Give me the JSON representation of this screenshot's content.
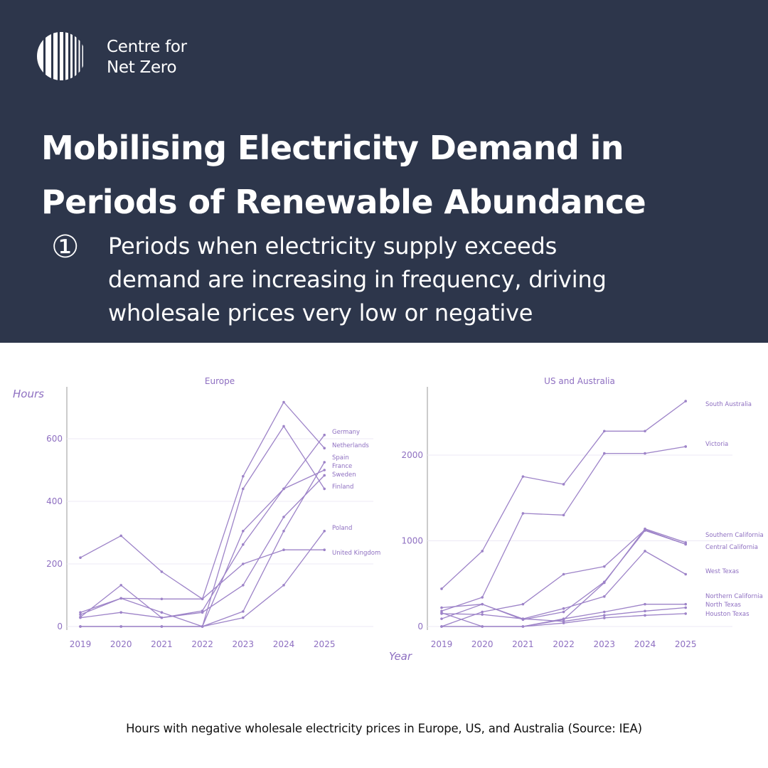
{
  "brand": {
    "line1": "Centre for",
    "line2": "Net Zero",
    "logo_icon": "barcode-circle-logo"
  },
  "headline": {
    "line1": "Mobilising Electricity Demand in",
    "line2": "Periods of Renewable Abundance"
  },
  "point": {
    "number": "①",
    "line1": "Periods when electricity supply exceeds",
    "line2": "demand are increasing in frequency, driving",
    "line3": "wholesale prices very low or negative"
  },
  "caption": "Hours with negative wholesale electricity prices in Europe, US, and Australia (Source: IEA)",
  "colors": {
    "background_header": "#2d364b",
    "line": "#9d83c8",
    "label": "#8e6fc1"
  },
  "chart_data": [
    {
      "type": "line",
      "title": "Europe",
      "ylabel": "Hours",
      "xlabel": "",
      "x": [
        "2019",
        "2020",
        "2021",
        "2022",
        "2023",
        "2024",
        "2025"
      ],
      "ylim": [
        0,
        720
      ],
      "yticks": [
        0,
        200,
        400,
        600
      ],
      "grid": true,
      "series": [
        {
          "name": "Germany",
          "values": [
            0,
            0,
            0,
            0,
            305,
            440,
            612
          ]
        },
        {
          "name": "Netherlands",
          "values": [
            45,
            90,
            88,
            88,
            480,
            717,
            570
          ]
        },
        {
          "name": "Spain",
          "values": [
            0,
            0,
            0,
            0,
            48,
            305,
            525
          ]
        },
        {
          "name": "France",
          "values": [
            30,
            132,
            28,
            50,
            262,
            440,
            500
          ]
        },
        {
          "name": "Sweden",
          "values": [
            28,
            45,
            28,
            45,
            132,
            350,
            483
          ]
        },
        {
          "name": "Finland",
          "values": [
            38,
            90,
            45,
            0,
            440,
            640,
            440
          ]
        },
        {
          "name": "Poland",
          "values": [
            0,
            0,
            0,
            0,
            28,
            132,
            305
          ]
        },
        {
          "name": "United Kingdom",
          "values": [
            220,
            290,
            175,
            88,
            200,
            245,
            245
          ]
        }
      ]
    },
    {
      "type": "line",
      "title": "US and Australia",
      "ylabel": "",
      "xlabel": "Year",
      "x": [
        "2019",
        "2020",
        "2021",
        "2022",
        "2023",
        "2024",
        "2025"
      ],
      "ylim": [
        0,
        2750
      ],
      "yticks": [
        0,
        1000,
        2000
      ],
      "grid": true,
      "series": [
        {
          "name": "South Australia",
          "values": [
            440,
            880,
            1750,
            1660,
            2280,
            2280,
            2630
          ]
        },
        {
          "name": "Victoria",
          "values": [
            180,
            340,
            1320,
            1300,
            2020,
            2020,
            2100
          ]
        },
        {
          "name": "Southern California",
          "values": [
            0,
            0,
            0,
            80,
            510,
            1140,
            980
          ]
        },
        {
          "name": "Central California",
          "values": [
            0,
            170,
            260,
            610,
            700,
            1130,
            960
          ]
        },
        {
          "name": "West Texas",
          "values": [
            90,
            260,
            90,
            210,
            350,
            880,
            610
          ]
        },
        {
          "name": "Northern California",
          "values": [
            220,
            260,
            80,
            170,
            520,
            1120,
            960
          ]
        },
        {
          "name": "North Texas",
          "values": [
            160,
            0,
            0,
            90,
            170,
            260,
            260
          ]
        },
        {
          "name": "Houston Texas",
          "values": [
            0,
            0,
            0,
            40,
            100,
            130,
            150
          ]
        },
        {
          "name": "",
          "values": [
            150,
            140,
            90,
            60,
            130,
            180,
            220
          ]
        }
      ]
    }
  ]
}
